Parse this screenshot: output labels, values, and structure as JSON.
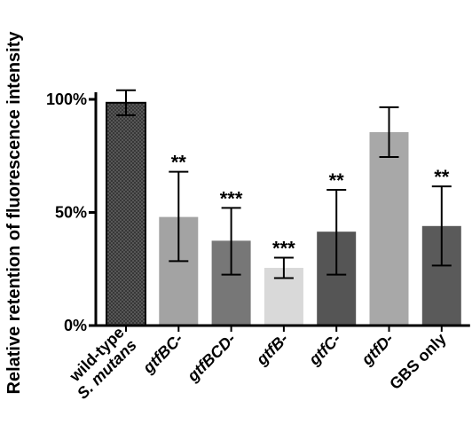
{
  "chart_data": {
    "type": "bar",
    "ylabel": "Relative retention of fluorescence intensity",
    "ylim": [
      0,
      100
    ],
    "yticks": [
      {
        "value": 0,
        "label": "0%"
      },
      {
        "value": 50,
        "label": "50%"
      },
      {
        "value": 100,
        "label": "100%"
      }
    ],
    "grid": false,
    "categories": [
      {
        "lines": [
          "wild-type",
          "S. mutans"
        ],
        "italic": [
          false,
          true
        ]
      },
      {
        "lines": [
          "gtfBC-"
        ],
        "italic": [
          true
        ]
      },
      {
        "lines": [
          "gtfBCD-"
        ],
        "italic": [
          true
        ]
      },
      {
        "lines": [
          "gtfB-"
        ],
        "italic": [
          true
        ]
      },
      {
        "lines": [
          "gtfC-"
        ],
        "italic": [
          true
        ]
      },
      {
        "lines": [
          "gtfD-"
        ],
        "italic": [
          true
        ]
      },
      {
        "lines": [
          "GBS only"
        ],
        "italic": [
          false
        ]
      }
    ],
    "values": [
      98.5,
      48,
      37.5,
      25.5,
      41.5,
      85.5,
      44
    ],
    "error_low": [
      93,
      28.5,
      22.5,
      21,
      22.5,
      74.5,
      26.5
    ],
    "error_high": [
      104,
      68,
      52,
      30,
      60,
      96.5,
      61.5
    ],
    "significance": [
      "",
      "**",
      "***",
      "***",
      "**",
      "",
      "**"
    ],
    "colors": [
      "#333333",
      "#a3a3a3",
      "#777777",
      "#d9d9d9",
      "#555555",
      "#a8a8a8",
      "#5a5a5a"
    ],
    "patterns": [
      "crosshatch",
      "none",
      "none",
      "none",
      "none",
      "none",
      "none"
    ]
  }
}
